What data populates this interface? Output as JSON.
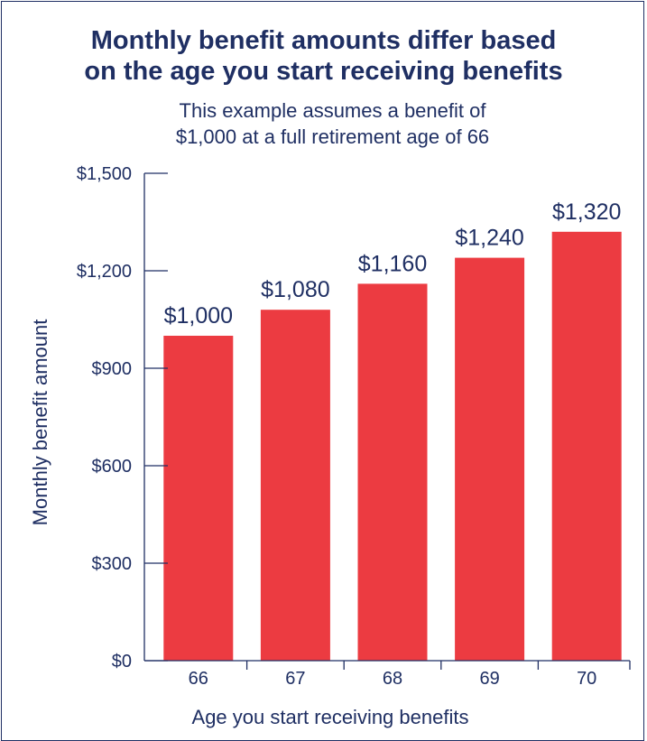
{
  "title_line1": "Monthly benefit amounts differ based",
  "title_line2": "on the age you start receiving benefits",
  "subtitle_line1": "This example assumes a benefit of",
  "subtitle_line2": "$1,000 at a full retirement age of 66",
  "colors": {
    "bar": "#ec3b41",
    "text": "#1f2f63",
    "axis": "#1f2f63"
  },
  "chart_data": {
    "type": "bar",
    "categories": [
      "66",
      "67",
      "68",
      "69",
      "70"
    ],
    "values": [
      1000,
      1080,
      1160,
      1240,
      1320
    ],
    "data_labels": [
      "$1,000",
      "$1,080",
      "$1,160",
      "$1,240",
      "$1,320"
    ],
    "xlabel": "Age you start receiving benefits",
    "ylabel": "Monthly benefit amount",
    "ylim": [
      0,
      1500
    ],
    "yticks": [
      0,
      300,
      600,
      900,
      1200,
      1500
    ],
    "ytick_labels": [
      "$0",
      "$300",
      "$600",
      "$900",
      "$1,200",
      "$1,500"
    ],
    "grid": false,
    "legend": "none"
  }
}
